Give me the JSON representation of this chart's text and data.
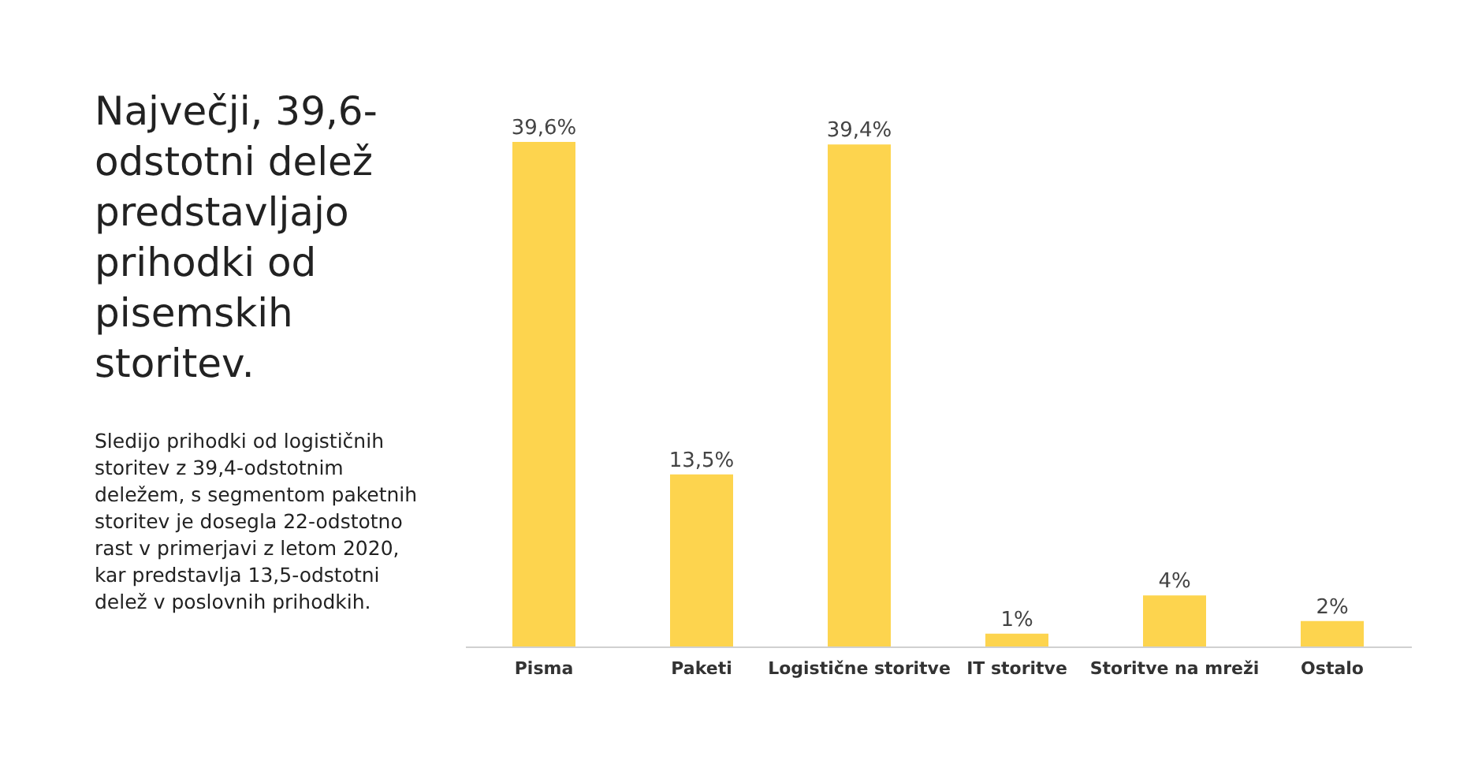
{
  "chart_data": {
    "type": "bar",
    "title": "Največji, 39,6-odstotni delež predstavljajo prihodki od pisemskih storitev.",
    "annotations": [
      "Sledijo prihodki od logističnih storitev z 39,4-odstotnim deležem, s segmentom paketnih storitev je dosegla 22-odstotno rast v primerjavi z letom 2020, kar predstavlja 13,5-odstotni delež v poslovnih prihodkih."
    ],
    "categories": [
      "Pisma",
      "Paketi",
      "Logistične storitve",
      "IT storitve",
      "Storitve na mreži",
      "Ostalo"
    ],
    "values": [
      39.6,
      13.5,
      39.4,
      1,
      4,
      2
    ],
    "value_labels": [
      "39,6%",
      "13,5%",
      "39,4%",
      "1%",
      "4%",
      "2%"
    ],
    "color": "#fdd44e",
    "tick_labels": "x",
    "grid": false
  }
}
